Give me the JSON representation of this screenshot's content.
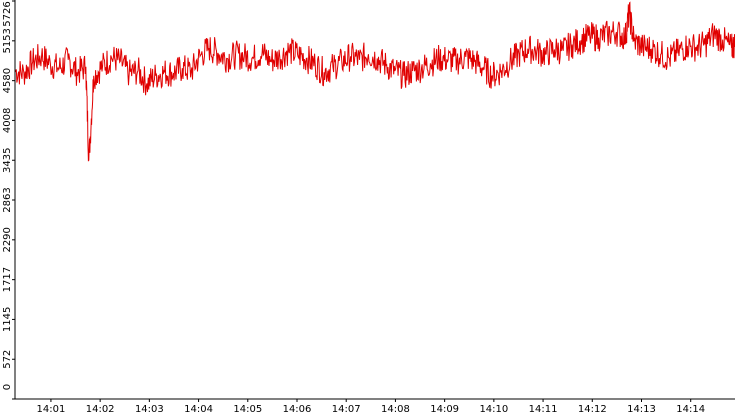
{
  "chart_data": {
    "type": "line",
    "title": "",
    "xlabel": "",
    "ylabel": "",
    "x_ticks": [
      "14:01",
      "14:02",
      "14:03",
      "14:04",
      "14:05",
      "14:06",
      "14:07",
      "14:08",
      "14:09",
      "14:10",
      "14:11",
      "14:12",
      "14:13",
      "14:14"
    ],
    "x_range_minutes": [
      0.27,
      14.9
    ],
    "y_ticks": [
      0,
      572,
      1145,
      1717,
      2290,
      2863,
      3435,
      4008,
      4580,
      5153,
      5726
    ],
    "ylim": [
      0,
      5726
    ],
    "grid": false,
    "legend": "none",
    "series": [
      {
        "color": "#e00000",
        "points": [
          [
            0.27,
            4720
          ],
          [
            0.45,
            4690
          ],
          [
            0.63,
            4850
          ],
          [
            0.81,
            4940
          ],
          [
            0.99,
            4820
          ],
          [
            1.17,
            4760
          ],
          [
            1.35,
            4880
          ],
          [
            1.53,
            4700
          ],
          [
            1.71,
            4780
          ],
          [
            1.77,
            3430
          ],
          [
            1.87,
            4650
          ],
          [
            2.05,
            4790
          ],
          [
            2.23,
            4910
          ],
          [
            2.41,
            4860
          ],
          [
            2.59,
            4680
          ],
          [
            2.77,
            4720
          ],
          [
            2.95,
            4540
          ],
          [
            3.13,
            4650
          ],
          [
            3.31,
            4700
          ],
          [
            3.49,
            4690
          ],
          [
            3.67,
            4760
          ],
          [
            3.85,
            4720
          ],
          [
            4.03,
            4930
          ],
          [
            4.21,
            5050
          ],
          [
            4.39,
            4980
          ],
          [
            4.57,
            4900
          ],
          [
            4.75,
            4950
          ],
          [
            4.93,
            4930
          ],
          [
            5.11,
            4900
          ],
          [
            5.29,
            4980
          ],
          [
            5.47,
            4870
          ],
          [
            5.65,
            4920
          ],
          [
            5.83,
            5010
          ],
          [
            6.01,
            4960
          ],
          [
            6.19,
            4900
          ],
          [
            6.37,
            4820
          ],
          [
            6.55,
            4700
          ],
          [
            6.73,
            4780
          ],
          [
            6.91,
            4850
          ],
          [
            7.09,
            4930
          ],
          [
            7.27,
            4880
          ],
          [
            7.45,
            4960
          ],
          [
            7.63,
            4900
          ],
          [
            7.81,
            4800
          ],
          [
            7.99,
            4720
          ],
          [
            8.17,
            4650
          ],
          [
            8.35,
            4720
          ],
          [
            8.53,
            4760
          ],
          [
            8.71,
            4830
          ],
          [
            8.89,
            4900
          ],
          [
            9.07,
            4880
          ],
          [
            9.25,
            4860
          ],
          [
            9.43,
            4920
          ],
          [
            9.61,
            4860
          ],
          [
            9.79,
            4760
          ],
          [
            9.97,
            4650
          ],
          [
            10.15,
            4720
          ],
          [
            10.33,
            4850
          ],
          [
            10.51,
            4960
          ],
          [
            10.69,
            5040
          ],
          [
            10.87,
            5000
          ],
          [
            11.05,
            4960
          ],
          [
            11.23,
            5030
          ],
          [
            11.41,
            5010
          ],
          [
            11.59,
            5100
          ],
          [
            11.77,
            5160
          ],
          [
            11.95,
            5220
          ],
          [
            12.13,
            5200
          ],
          [
            12.31,
            5250
          ],
          [
            12.49,
            5280
          ],
          [
            12.67,
            5200
          ],
          [
            12.75,
            5560
          ],
          [
            12.85,
            5150
          ],
          [
            13.03,
            5060
          ],
          [
            13.21,
            5040
          ],
          [
            13.39,
            4960
          ],
          [
            13.57,
            4900
          ],
          [
            13.75,
            5000
          ],
          [
            13.93,
            5080
          ],
          [
            14.11,
            5060
          ],
          [
            14.29,
            5100
          ],
          [
            14.47,
            5250
          ],
          [
            14.65,
            5170
          ],
          [
            14.83,
            5050
          ],
          [
            14.9,
            5100
          ]
        ]
      }
    ]
  }
}
